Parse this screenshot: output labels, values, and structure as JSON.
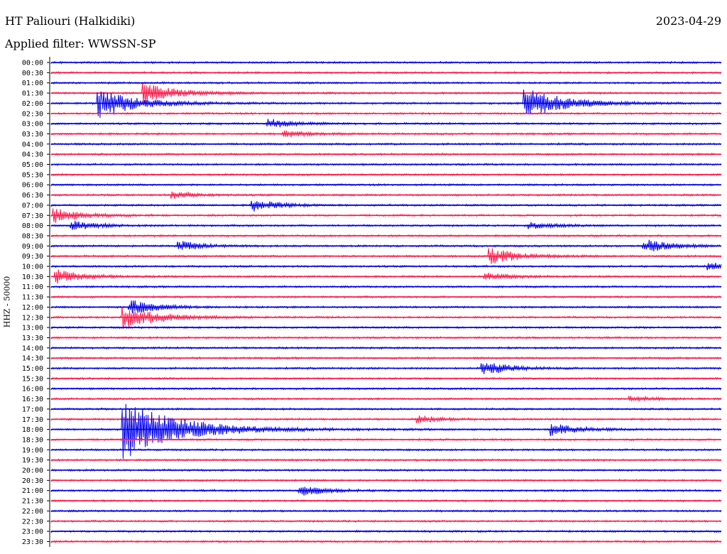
{
  "header": {
    "station": "HT Paliouri (Halkidiki)",
    "date": "2023-04-29",
    "filter": "Applied filter: WWSSN-SP"
  },
  "chart_data": {
    "type": "line",
    "ylabel": "HHZ - 50000",
    "colors": {
      "odd": "#0000ee",
      "even": "#ff1a4a"
    },
    "rows": [
      "00:00",
      "00:30",
      "01:00",
      "01:30",
      "02:00",
      "02:30",
      "03:00",
      "03:30",
      "04:00",
      "04:30",
      "05:00",
      "05:30",
      "06:00",
      "06:30",
      "07:00",
      "07:30",
      "08:00",
      "08:30",
      "09:00",
      "09:30",
      "10:00",
      "10:30",
      "11:00",
      "11:30",
      "12:00",
      "12:30",
      "13:00",
      "13:30",
      "14:00",
      "14:30",
      "15:00",
      "15:30",
      "16:00",
      "16:30",
      "17:00",
      "17:30",
      "18:00",
      "18:30",
      "19:00",
      "19:30",
      "20:00",
      "20:30",
      "21:00",
      "21:30",
      "22:00",
      "22:30",
      "23:00",
      "23:30"
    ],
    "trace_minutes": 30,
    "events": [
      {
        "row": "01:30",
        "minute": 4.2,
        "amp": 1.6
      },
      {
        "row": "02:00",
        "minute": 2.2,
        "amp": 2.2
      },
      {
        "row": "02:00",
        "minute": 21.3,
        "amp": 2.4
      },
      {
        "row": "03:00",
        "minute": 9.8,
        "amp": 0.7
      },
      {
        "row": "03:30",
        "minute": 10.5,
        "amp": 0.5
      },
      {
        "row": "06:30",
        "minute": 5.5,
        "amp": 0.5
      },
      {
        "row": "07:00",
        "minute": 9.1,
        "amp": 0.9
      },
      {
        "row": "07:30",
        "minute": 0.2,
        "amp": 1.1
      },
      {
        "row": "08:00",
        "minute": 1.0,
        "amp": 0.7
      },
      {
        "row": "08:00",
        "minute": 21.5,
        "amp": 0.5
      },
      {
        "row": "09:00",
        "minute": 5.8,
        "amp": 0.7
      },
      {
        "row": "09:00",
        "minute": 26.6,
        "amp": 1.0
      },
      {
        "row": "09:30",
        "minute": 19.7,
        "amp": 1.2
      },
      {
        "row": "10:00",
        "minute": 29.5,
        "amp": 0.5
      },
      {
        "row": "10:30",
        "minute": 0.3,
        "amp": 1.0
      },
      {
        "row": "10:30",
        "minute": 19.5,
        "amp": 0.6
      },
      {
        "row": "12:00",
        "minute": 3.6,
        "amp": 1.1
      },
      {
        "row": "12:30",
        "minute": 3.3,
        "amp": 1.8
      },
      {
        "row": "15:00",
        "minute": 19.4,
        "amp": 1.0
      },
      {
        "row": "16:30",
        "minute": 26.0,
        "amp": 0.4
      },
      {
        "row": "17:30",
        "minute": 16.5,
        "amp": 0.5
      },
      {
        "row": "18:00",
        "minute": 22.5,
        "amp": 0.9
      },
      {
        "row": "18:00",
        "minute": 3.3,
        "amp": 4.5
      },
      {
        "row": "21:00",
        "minute": 11.2,
        "amp": 0.8
      }
    ]
  }
}
